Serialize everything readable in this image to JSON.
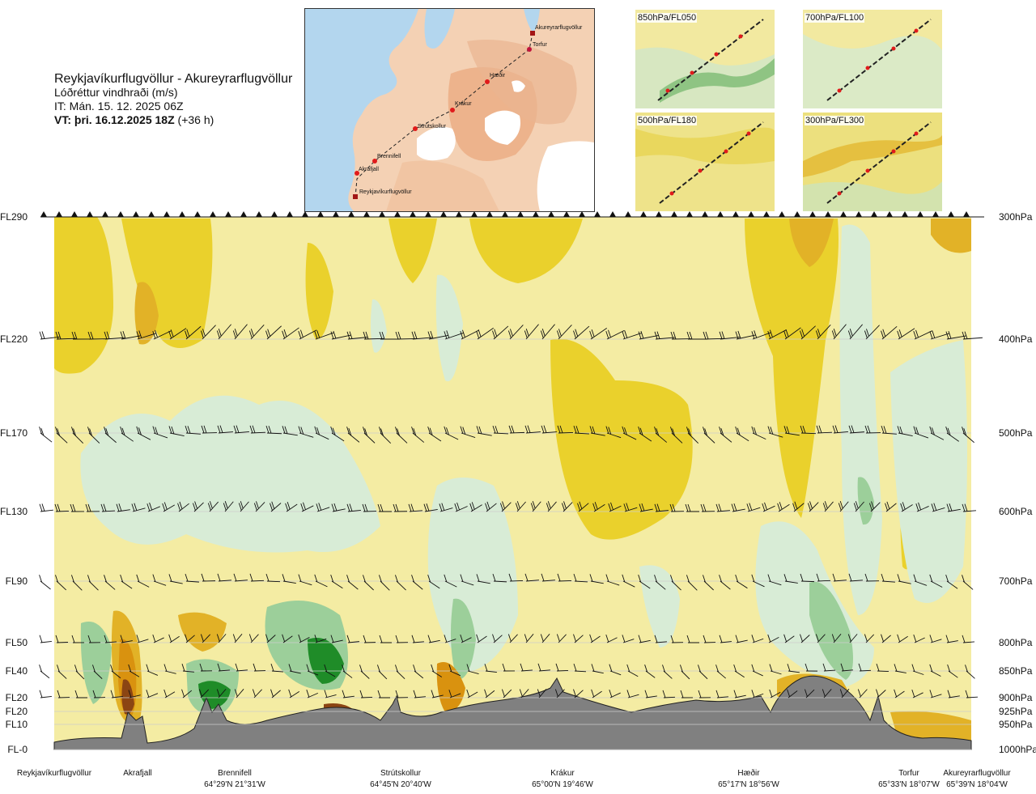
{
  "header": {
    "route": "Reykjavíkurflugvöllur - Akureyrarflugvöllur",
    "variable": "Lóðréttur vindhraði (m/s)",
    "issue": "IT: Mán. 15. 12. 2025 06Z",
    "valid_bold": "VT: þri. 16.12.2025 18Z",
    "valid_lead": "(+36 h)"
  },
  "map": {
    "places": [
      "Akureyrarflugvöllur",
      "Torfur",
      "Hæðir",
      "Krákur",
      "Strútskollur",
      "Brennifell",
      "Akrafjall",
      "Reykjavíkurflugvöllur"
    ]
  },
  "thumbnails": [
    {
      "label": "850hPa/FL050"
    },
    {
      "label": "700hPa/FL100"
    },
    {
      "label": "500hPa/FL180"
    },
    {
      "label": "300hPa/FL300"
    }
  ],
  "chart_data": {
    "type": "heatmap",
    "title": "",
    "left_axis_labels": [
      "FL290",
      "FL220",
      "FL170",
      "FL130",
      "FL90",
      "FL50",
      "FL40",
      "FL20",
      "FL20",
      "FL10",
      "FL-0"
    ],
    "right_axis_labels": [
      "300hPa",
      "400hPa",
      "500hPa",
      "600hPa",
      "700hPa",
      "800hPa",
      "850hPa",
      "900hPa",
      "925hPa",
      "950hPa",
      "1000hPa"
    ],
    "pressure_levels_hPa": [
      300,
      400,
      500,
      600,
      700,
      800,
      850,
      900,
      925,
      950,
      1000
    ],
    "waypoints": [
      {
        "name": "Reykjavíkurflugvöllur",
        "coord": ""
      },
      {
        "name": "Akrafjall",
        "coord": ""
      },
      {
        "name": "Brennifell",
        "coord": "64°29'N 21°31'W"
      },
      {
        "name": "Strútskollur",
        "coord": "64°45'N 20°40'W"
      },
      {
        "name": "Krákur",
        "coord": "65°00'N 19°46'W"
      },
      {
        "name": "Hæðir",
        "coord": "65°17'N 18°56'W"
      },
      {
        "name": "Torfur",
        "coord": "65°33'N 18°07'W"
      },
      {
        "name": "Akureyrarflugvöllur",
        "coord": "65°39'N 18°04'W"
      }
    ],
    "x_range": [
      0,
      1
    ],
    "y_range_hPa": [
      1000,
      300
    ],
    "grid": "horizontal lines at pressure levels",
    "colors": {
      "strong_sink": "#8b4513",
      "sink": "#d9920f",
      "weak_sink": "#ead12c",
      "background": "#f4eca3",
      "weak_rise": "#d8ecd6",
      "rise": "#9ccf9a",
      "strong_rise": "#1f8c28",
      "terrain": "#808080"
    }
  }
}
